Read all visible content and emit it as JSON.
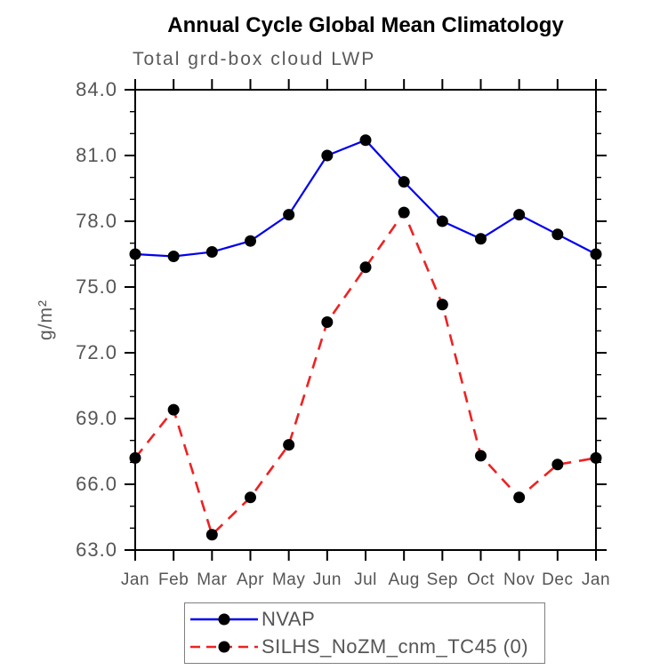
{
  "chart_data": {
    "type": "line",
    "title": "Annual Cycle Global Mean Climatology",
    "subtitle": "Total grd-box cloud LWP",
    "ylabel": "g/m²",
    "xlabel": "",
    "ylim": [
      63.0,
      84.0
    ],
    "ymajor_step": 3.0,
    "yminor_step": 1.0,
    "ytick_labels": [
      "63.0",
      "66.0",
      "69.0",
      "72.0",
      "75.0",
      "78.0",
      "81.0",
      "84.0"
    ],
    "categories": [
      "Jan",
      "Feb",
      "Mar",
      "Apr",
      "May",
      "Jun",
      "Jul",
      "Aug",
      "Sep",
      "Oct",
      "Nov",
      "Dec",
      "Jan"
    ],
    "series": [
      {
        "name": "NVAP",
        "color": "#0000ee",
        "line_style": "solid",
        "marker": "filled-black-circle",
        "values": [
          76.5,
          76.4,
          76.6,
          77.1,
          78.3,
          81.0,
          81.7,
          79.8,
          78.0,
          77.2,
          78.3,
          77.4,
          76.5
        ]
      },
      {
        "name": "SILHS_NoZM_cnm_TC45 (0)",
        "color": "#ee2222",
        "line_style": "dashed",
        "marker": "filled-black-circle",
        "values": [
          67.2,
          69.4,
          63.7,
          65.4,
          67.8,
          73.4,
          75.9,
          78.4,
          74.2,
          67.3,
          65.4,
          66.9,
          67.2
        ]
      }
    ],
    "grid": false,
    "legend_position": "bottom-center"
  },
  "colors": {
    "axis": "#000000",
    "tick_label": "#555555",
    "title": "#000000",
    "subtitle": "#5a5a5a",
    "marker": "#000000",
    "legend_border": "#7f7f7f"
  }
}
